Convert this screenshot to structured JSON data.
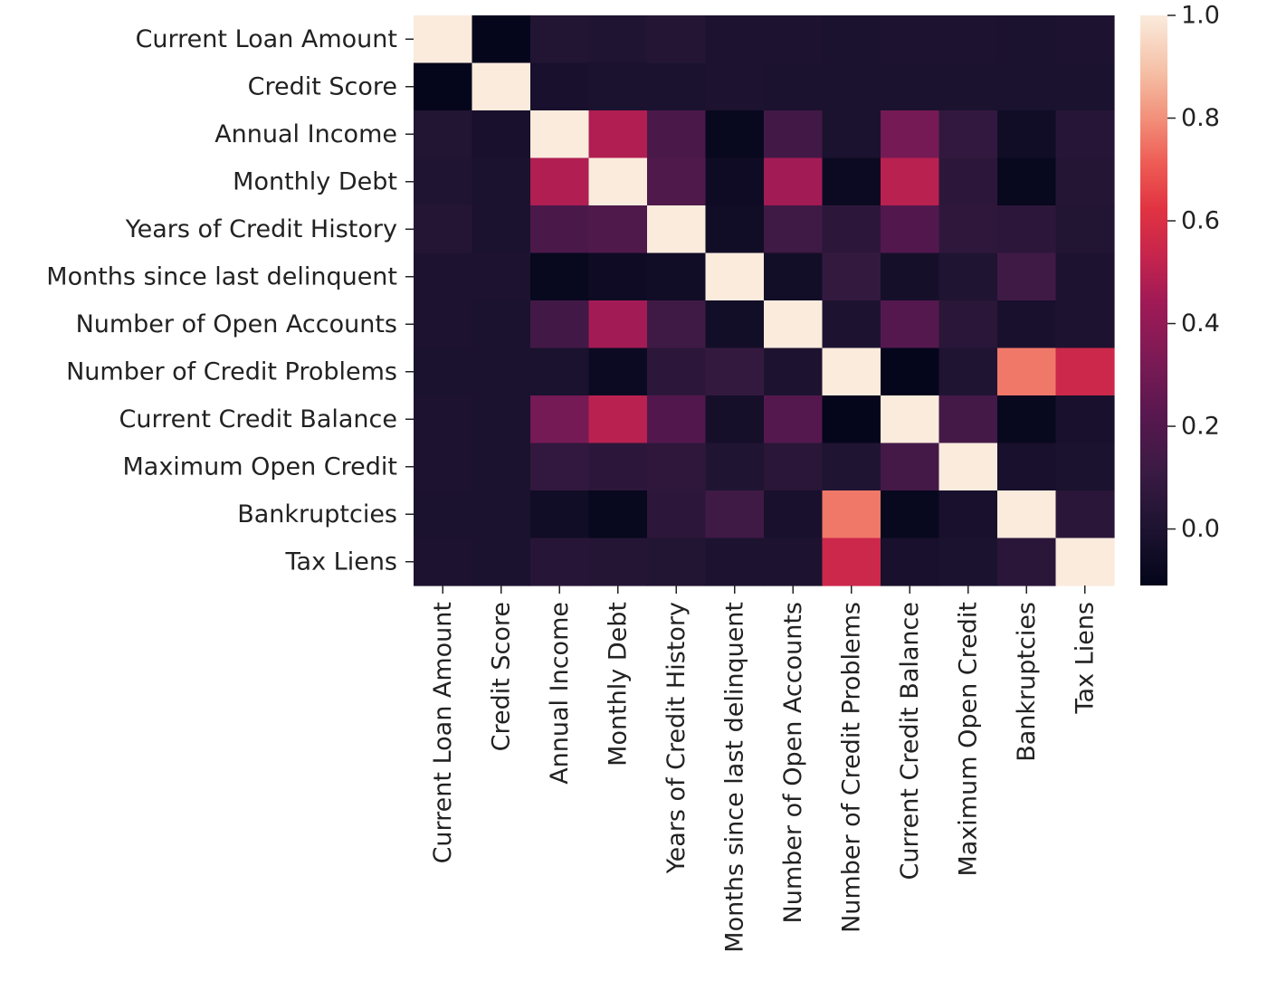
{
  "chart_data": {
    "type": "heatmap",
    "title": "",
    "xlabel": "",
    "ylabel": "",
    "rows": [
      "Current Loan Amount",
      "Credit Score",
      "Annual Income",
      "Monthly Debt",
      "Years of Credit History",
      "Months since last delinquent",
      "Number of Open Accounts",
      "Number of Credit Problems",
      "Current Credit Balance",
      "Maximum Open Credit",
      "Bankruptcies",
      "Tax Liens"
    ],
    "columns": [
      "Current Loan Amount",
      "Credit Score",
      "Annual Income",
      "Monthly Debt",
      "Years of Credit History",
      "Months since last delinquent",
      "Number of Open Accounts",
      "Number of Credit Problems",
      "Current Credit Balance",
      "Maximum Open Credit",
      "Bankruptcies",
      "Tax Liens"
    ],
    "values": [
      [
        1.0,
        -0.1,
        0.02,
        0.01,
        0.03,
        0.0,
        0.0,
        -0.01,
        0.0,
        0.0,
        -0.01,
        0.0
      ],
      [
        -0.1,
        1.0,
        -0.02,
        -0.01,
        -0.01,
        0.0,
        -0.01,
        -0.01,
        -0.01,
        -0.01,
        -0.01,
        -0.01
      ],
      [
        0.02,
        -0.02,
        1.0,
        0.48,
        0.17,
        -0.09,
        0.14,
        -0.01,
        0.31,
        0.08,
        -0.05,
        0.04
      ],
      [
        0.01,
        -0.01,
        0.48,
        1.0,
        0.19,
        -0.06,
        0.45,
        -0.07,
        0.5,
        0.06,
        -0.09,
        0.03
      ],
      [
        0.03,
        -0.01,
        0.17,
        0.19,
        1.0,
        -0.05,
        0.13,
        0.06,
        0.2,
        0.07,
        0.06,
        0.02
      ],
      [
        0.0,
        0.0,
        -0.09,
        -0.06,
        -0.05,
        1.0,
        -0.04,
        0.09,
        -0.03,
        0.01,
        0.13,
        0.0
      ],
      [
        0.0,
        -0.01,
        0.14,
        0.45,
        0.13,
        -0.04,
        1.0,
        0.0,
        0.21,
        0.05,
        -0.02,
        0.0
      ],
      [
        -0.01,
        -0.01,
        -0.01,
        -0.07,
        0.06,
        0.09,
        0.0,
        1.0,
        -0.1,
        0.01,
        0.76,
        0.55
      ],
      [
        0.0,
        -0.01,
        0.31,
        0.5,
        0.2,
        -0.03,
        0.21,
        -0.1,
        1.0,
        0.15,
        -0.09,
        -0.02
      ],
      [
        0.0,
        -0.01,
        0.08,
        0.06,
        0.07,
        0.01,
        0.05,
        0.01,
        0.15,
        1.0,
        -0.02,
        -0.01
      ],
      [
        -0.01,
        -0.01,
        -0.05,
        -0.09,
        0.06,
        0.13,
        -0.02,
        0.76,
        -0.09,
        -0.02,
        1.0,
        0.05
      ],
      [
        0.0,
        -0.01,
        0.04,
        0.03,
        0.02,
        0.0,
        0.0,
        0.55,
        -0.02,
        -0.01,
        0.05,
        1.0
      ]
    ],
    "colorbar": {
      "vmin": -0.11,
      "vmax": 1.0,
      "ticks": [
        0.0,
        0.2,
        0.4,
        0.6,
        0.8,
        1.0
      ],
      "tick_labels": [
        "0.0",
        "0.2",
        "0.4",
        "0.6",
        "0.8",
        "1.0"
      ]
    },
    "colormap_stops": [
      {
        "t": 0.0,
        "color": "#03051a"
      },
      {
        "t": 0.1,
        "color": "#1d1330"
      },
      {
        "t": 0.2,
        "color": "#3a1a43"
      },
      {
        "t": 0.3,
        "color": "#58184f"
      },
      {
        "t": 0.4,
        "color": "#7d1a55"
      },
      {
        "t": 0.5,
        "color": "#a11a56"
      },
      {
        "t": 0.58,
        "color": "#c7254d"
      },
      {
        "t": 0.66,
        "color": "#e13342"
      },
      {
        "t": 0.74,
        "color": "#ee5c54"
      },
      {
        "t": 0.82,
        "color": "#f2907a"
      },
      {
        "t": 0.9,
        "color": "#f5bfa5"
      },
      {
        "t": 1.0,
        "color": "#faebdd"
      }
    ],
    "grid": false,
    "legend": "colorbar-right"
  }
}
